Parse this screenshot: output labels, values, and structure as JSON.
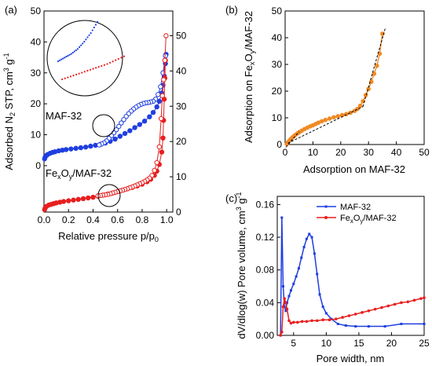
{
  "figure": {
    "panel_a_label": "(a)",
    "panel_b_label": "(b)",
    "panel_c_label": "(c)"
  },
  "chart_data": [
    {
      "type": "scatter",
      "panel": "(a)",
      "xlabel": "Relative pressure p/p",
      "xlabel_sub": "0",
      "ylabel": "Adsorbed N",
      "ylabel_sub": "2",
      "ylabel_rest": " STP, cm",
      "ylabel_sup": "3",
      "ylabel_end": " g",
      "ylabel_sup2": "-1",
      "xlim": [
        0,
        1.05
      ],
      "ylim_left": [
        -15,
        50
      ],
      "ylim_right": [
        0,
        57
      ],
      "xticks": [
        0.0,
        0.2,
        0.4,
        0.6,
        0.8,
        1.0
      ],
      "xtick_labels": [
        "0.0",
        "0.2",
        "0.4",
        "0.6",
        "0.8",
        "1.0"
      ],
      "yticks_left": [
        0,
        10,
        20,
        30,
        40,
        50
      ],
      "yticks_right": [
        0,
        10,
        20,
        30,
        40,
        50
      ],
      "annotations": {
        "maf": "MAF-32",
        "fe_pre": "Fe",
        "fe_x": "x",
        "fe_o": "O",
        "fe_y": "y",
        "fe_post": "/MAF-32"
      },
      "series": [
        {
          "name": "MAF-32 adsorption",
          "axis": "left",
          "color": "#1f3fe0",
          "filled": true,
          "x": [
            0.005,
            0.01,
            0.02,
            0.03,
            0.05,
            0.07,
            0.09,
            0.12,
            0.15,
            0.18,
            0.22,
            0.26,
            0.3,
            0.34,
            0.38,
            0.42,
            0.46,
            0.5,
            0.54,
            0.58,
            0.62,
            0.66,
            0.7,
            0.74,
            0.78,
            0.82,
            0.86,
            0.89,
            0.92,
            0.94,
            0.96,
            0.97,
            0.98,
            0.99,
            0.995
          ],
          "y": [
            2.2,
            2.8,
            3.3,
            3.6,
            4.0,
            4.3,
            4.5,
            4.8,
            5.0,
            5.2,
            5.4,
            5.6,
            5.8,
            6.0,
            6.3,
            6.6,
            6.9,
            7.3,
            7.9,
            8.6,
            9.5,
            10.4,
            11.3,
            12.3,
            13.3,
            14.4,
            15.8,
            17.2,
            19.0,
            20.8,
            23.5,
            26.0,
            29.0,
            33.0,
            36.0
          ]
        },
        {
          "name": "MAF-32 desorption",
          "axis": "left",
          "color": "#1f3fe0",
          "filled": false,
          "x": [
            0.99,
            0.97,
            0.95,
            0.93,
            0.91,
            0.89,
            0.87,
            0.85,
            0.83,
            0.81,
            0.79,
            0.77,
            0.75,
            0.73,
            0.71,
            0.69,
            0.67,
            0.65,
            0.63,
            0.61,
            0.59,
            0.57,
            0.55,
            0.53,
            0.51,
            0.49,
            0.47,
            0.45
          ],
          "y": [
            35.5,
            30.0,
            25.5,
            23.0,
            21.5,
            20.8,
            20.6,
            20.4,
            20.3,
            20.1,
            19.8,
            19.4,
            18.9,
            18.3,
            17.6,
            16.8,
            15.9,
            14.9,
            13.8,
            12.7,
            11.6,
            10.6,
            9.7,
            8.8,
            8.0,
            7.4,
            7.0,
            6.7
          ]
        },
        {
          "name": "FexOy/MAF-32 adsorption",
          "axis": "right",
          "color": "#e81f1f",
          "filled": true,
          "x": [
            0.005,
            0.01,
            0.02,
            0.04,
            0.06,
            0.08,
            0.1,
            0.13,
            0.16,
            0.2,
            0.24,
            0.28,
            0.32,
            0.36,
            0.4,
            0.44,
            0.48,
            0.52,
            0.56,
            0.6,
            0.64,
            0.68,
            0.72,
            0.76,
            0.8,
            0.84,
            0.87,
            0.9,
            0.92,
            0.94,
            0.96,
            0.97,
            0.975,
            0.98,
            0.985,
            0.99
          ],
          "y": [
            0.7,
            1.2,
            1.6,
            2.0,
            2.2,
            2.4,
            2.6,
            2.8,
            3.0,
            3.2,
            3.4,
            3.6,
            3.8,
            4.0,
            4.2,
            4.5,
            4.8,
            5.1,
            5.4,
            5.8,
            6.2,
            6.6,
            7.0,
            7.4,
            7.9,
            8.6,
            9.3,
            10.4,
            11.6,
            13.5,
            17.0,
            21.0,
            26.0,
            32.0,
            38.0,
            43.0
          ]
        },
        {
          "name": "FexOy/MAF-32 desorption",
          "axis": "right",
          "color": "#e81f1f",
          "filled": false,
          "x": [
            0.995,
            0.985,
            0.975,
            0.965,
            0.955,
            0.94,
            0.92,
            0.9,
            0.88,
            0.86,
            0.84,
            0.82,
            0.8,
            0.78,
            0.76,
            0.74,
            0.72,
            0.7,
            0.68,
            0.66,
            0.64,
            0.62,
            0.6,
            0.58,
            0.56,
            0.54,
            0.52,
            0.5,
            0.48,
            0.46,
            0.44
          ],
          "y": [
            50.0,
            43.0,
            37.5,
            33.0,
            26.5,
            18.5,
            14.0,
            11.8,
            10.4,
            9.6,
            9.1,
            8.7,
            8.3,
            8.0,
            7.7,
            7.4,
            7.1,
            6.9,
            6.6,
            6.4,
            6.2,
            6.0,
            5.8,
            5.6,
            5.4,
            5.2,
            5.0,
            4.9,
            4.8,
            4.7,
            4.6
          ]
        }
      ]
    },
    {
      "type": "scatter",
      "panel": "(b)",
      "xlabel": "Adsorption on MAF-32",
      "ylabel_pre": "Adsorption on Fe",
      "ylabel_x": "x",
      "ylabel_o": "O",
      "ylabel_y": "y",
      "ylabel_post": "/MAF-32",
      "xlim": [
        0,
        50
      ],
      "ylim": [
        0,
        50
      ],
      "xticks": [
        0,
        10,
        20,
        30,
        40,
        50
      ],
      "yticks": [
        0,
        10,
        20,
        30,
        40,
        50
      ],
      "series": [
        {
          "name": "comparison plot",
          "color": "#f08a24",
          "x": [
            0.6,
            1.0,
            1.5,
            2.0,
            2.6,
            3.2,
            3.8,
            4.5,
            5.2,
            6.0,
            7.0,
            8.0,
            9.0,
            10.0,
            11.0,
            12.0,
            13.2,
            14.5,
            16.0,
            17.5,
            19.0,
            20.5,
            22.0,
            23.5,
            25.0,
            26.0,
            27.0,
            28.0,
            29.0,
            30.0,
            31.0,
            32.0,
            33.0,
            34.0,
            35.0
          ],
          "y": [
            0.2,
            0.8,
            1.4,
            2.0,
            2.6,
            3.2,
            3.7,
            4.2,
            4.7,
            5.2,
            5.8,
            6.3,
            6.8,
            7.2,
            7.7,
            8.2,
            8.7,
            9.2,
            9.7,
            10.2,
            10.6,
            11.0,
            11.4,
            11.9,
            12.6,
            13.3,
            14.5,
            16.2,
            18.5,
            20.8,
            23.5,
            26.5,
            29.5,
            34.0,
            41.5
          ]
        }
      ],
      "fit_lines": [
        {
          "x": [
            1,
            28
          ],
          "y": [
            0.5,
            14.2
          ]
        },
        {
          "x": [
            28,
            36
          ],
          "y": [
            14.2,
            43.5
          ]
        },
        {
          "x": [
            0.3,
            5
          ],
          "y": [
            -1,
            4.8
          ]
        }
      ]
    },
    {
      "type": "line",
      "panel": "(c)",
      "xlabel": "Pore width, nm",
      "ylabel": "dV/dlog(w) Pore volume, cm",
      "ylabel_sup": "3",
      "ylabel_end": " g",
      "ylabel_sup2": "-1",
      "xlim": [
        2.5,
        25
      ],
      "ylim": [
        0,
        0.17
      ],
      "xticks": [
        5,
        10,
        15,
        20,
        25
      ],
      "xtick_labels": [
        "5",
        "10",
        "15",
        "20",
        "25"
      ],
      "yticks": [
        0.0,
        0.04,
        0.08,
        0.12,
        0.16
      ],
      "ytick_labels": [
        "0.00",
        "0.04",
        "0.08",
        "0.12",
        "0.16"
      ],
      "legend": {
        "maf": "MAF-32",
        "fe_pre": "Fe",
        "fe_x": "x",
        "fe_o": "O",
        "fe_y": "y",
        "fe_post": "/MAF-32"
      },
      "legend_position": "top-right",
      "series": [
        {
          "name": "MAF-32",
          "color": "#1f3fe0",
          "x": [
            3.0,
            3.2,
            3.4,
            3.6,
            3.8,
            4.0,
            4.3,
            4.6,
            5.0,
            5.4,
            5.8,
            6.2,
            6.6,
            7.0,
            7.4,
            7.8,
            8.2,
            8.6,
            9.0,
            9.5,
            10.0,
            10.8,
            11.8,
            13.0,
            14.5,
            16.5,
            19.0,
            21.5,
            25.0
          ],
          "y": [
            0.0,
            0.144,
            0.06,
            0.035,
            0.03,
            0.04,
            0.048,
            0.055,
            0.063,
            0.072,
            0.082,
            0.095,
            0.108,
            0.118,
            0.124,
            0.12,
            0.1,
            0.075,
            0.05,
            0.035,
            0.027,
            0.02,
            0.014,
            0.012,
            0.011,
            0.011,
            0.011,
            0.014,
            0.014
          ]
        },
        {
          "name": "FexOy/MAF-32",
          "color": "#e81f1f",
          "x": [
            3.0,
            3.2,
            3.4,
            3.6,
            3.8,
            4.0,
            4.3,
            4.6,
            5.0,
            5.6,
            6.3,
            7.0,
            7.8,
            8.6,
            9.5,
            10.5,
            11.5,
            12.5,
            13.5,
            14.5,
            15.5,
            16.5,
            17.5,
            18.5,
            19.5,
            20.5,
            21.5,
            22.5,
            23.5,
            24.5,
            25.0
          ],
          "y": [
            0.0,
            0.004,
            0.035,
            0.045,
            0.04,
            0.032,
            0.018,
            0.015,
            0.016,
            0.016,
            0.017,
            0.017,
            0.018,
            0.018,
            0.019,
            0.019,
            0.02,
            0.022,
            0.024,
            0.026,
            0.028,
            0.03,
            0.032,
            0.034,
            0.036,
            0.038,
            0.04,
            0.041,
            0.043,
            0.045,
            0.046
          ]
        }
      ]
    }
  ]
}
